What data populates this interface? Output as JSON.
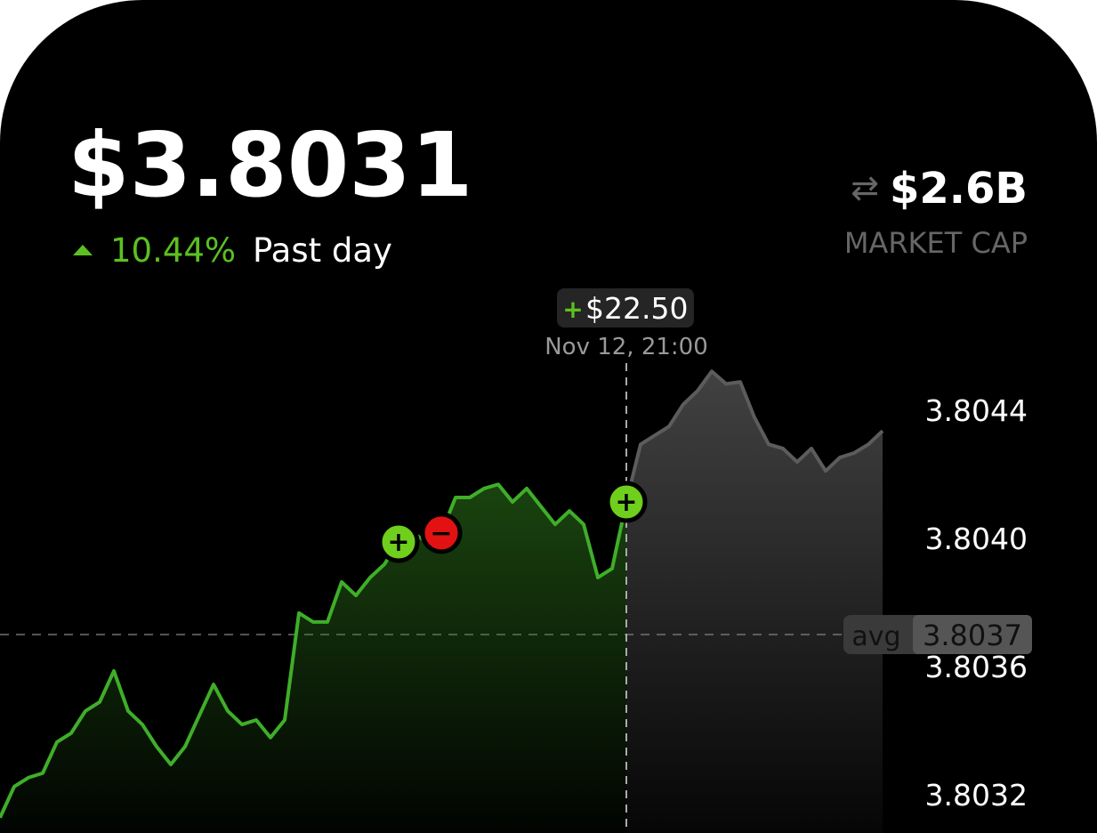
{
  "header": {
    "price": "$3.8031",
    "change": "10.44%",
    "period": "Past day",
    "market_cap": "$2.6B",
    "market_cap_label": "MARKET CAP"
  },
  "chart_data": {
    "type": "line",
    "values": [
      3.803128,
      3.803225,
      3.803253,
      3.803267,
      3.803364,
      3.803392,
      3.803461,
      3.803489,
      3.803586,
      3.803461,
      3.803419,
      3.80335,
      3.803294,
      3.80335,
      3.803447,
      3.803544,
      3.803461,
      3.803419,
      3.803433,
      3.803378,
      3.803433,
      3.803767,
      3.803739,
      3.803739,
      3.803864,
      3.803822,
      3.803878,
      3.803919,
      3.803989,
      3.804017,
      3.803989,
      3.804017,
      3.804128,
      3.804128,
      3.804156,
      3.804169,
      3.804114,
      3.804156,
      3.8041,
      3.804044,
      3.804086,
      3.804044,
      3.803878,
      3.803906,
      3.804114,
      3.804294,
      3.804322,
      3.80435,
      3.804419,
      3.804461,
      3.804522,
      3.804483,
      3.804489,
      3.804378,
      3.804294,
      3.804281,
      3.804239,
      3.804281,
      3.804211,
      3.804253,
      3.804267,
      3.804294,
      3.804336
    ],
    "color": "#3fae29",
    "color_after": "#5c5c5c",
    "ylim": [
      3.80308,
      3.80457
    ],
    "yticks": [
      3.8044,
      {
        "value": 3.804,
        "label": "3.8040"
      },
      3.8036,
      3.8032
    ],
    "avg": {
      "label": "avg",
      "value": 3.8037,
      "value_label": "3.8037"
    },
    "crosshair": {
      "index": 44,
      "label": "Nov 12, 21:00",
      "change_sign": "+",
      "change": "$22.50"
    },
    "events": [
      {
        "index": 28,
        "label": "+"
      },
      {
        "index": 31,
        "label": "−"
      },
      {
        "index": 44,
        "label": "+"
      }
    ]
  }
}
